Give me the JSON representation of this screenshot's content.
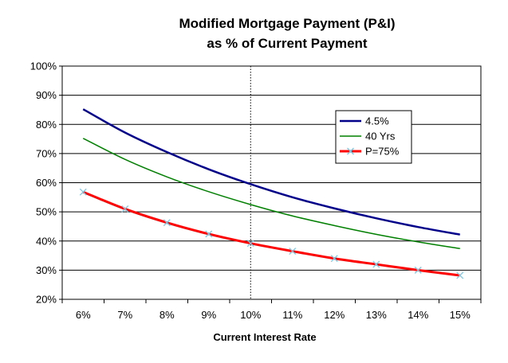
{
  "chart_data": {
    "type": "line",
    "title_lines": [
      "Modified Mortgage Payment (P&I)",
      "as % of Current Payment"
    ],
    "xlabel": "Current Interest Rate",
    "ylabel": "",
    "x": [
      6,
      7,
      8,
      9,
      10,
      11,
      12,
      13,
      14,
      15
    ],
    "categories": [
      "6%",
      "7%",
      "8%",
      "9%",
      "10%",
      "11%",
      "12%",
      "13%",
      "14%",
      "15%"
    ],
    "ylim": [
      20,
      100
    ],
    "yticks": [
      20,
      30,
      40,
      50,
      60,
      70,
      80,
      90,
      100
    ],
    "ytick_labels": [
      "20%",
      "30%",
      "40%",
      "50%",
      "60%",
      "70%",
      "80%",
      "90%",
      "100%"
    ],
    "grid": "horizontal",
    "reference_line_x": 10,
    "legend_position": "right",
    "series": [
      {
        "name": "4.5%",
        "color": "#00008b",
        "marker": "none",
        "values": [
          85.2,
          77.2,
          70.5,
          64.6,
          59.5,
          55.0,
          51.2,
          47.8,
          44.8,
          42.2
        ]
      },
      {
        "name": "40 Yrs",
        "color": "#008000",
        "marker": "none",
        "values": [
          75.2,
          68.0,
          62.0,
          56.9,
          52.5,
          48.6,
          45.3,
          42.3,
          39.7,
          37.4
        ]
      },
      {
        "name": "P=75%",
        "color": "#ff0000",
        "marker": "x",
        "marker_color": "#7ec8e3",
        "values": [
          56.8,
          51.0,
          46.3,
          42.4,
          39.2,
          36.5,
          34.0,
          32.0,
          30.0,
          28.2
        ]
      }
    ]
  }
}
